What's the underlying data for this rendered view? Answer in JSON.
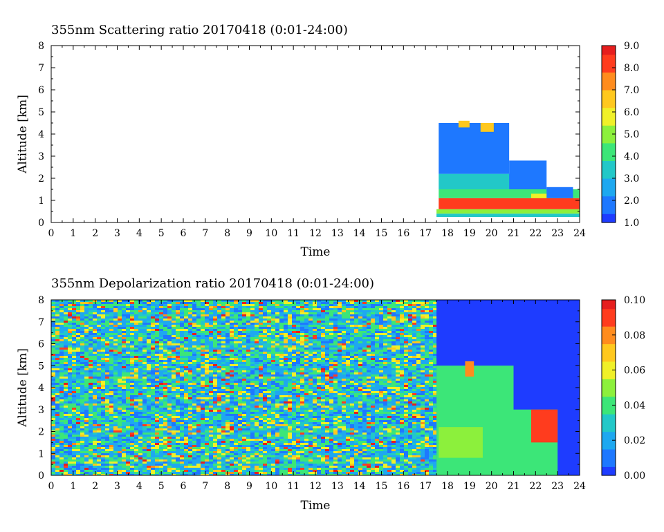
{
  "colors": {
    "colormap": [
      "#1e3cff",
      "#1e78ff",
      "#1ea8f0",
      "#22c8c8",
      "#3ce678",
      "#8cf03c",
      "#f0f028",
      "#ffc81e",
      "#ff8c1e",
      "#ff3c1e",
      "#e61e1e"
    ],
    "frame": "#000000",
    "background": "#ffffff"
  },
  "chart_data": [
    {
      "type": "heatmap",
      "title": "355nm Scattering ratio  20170418 (0:01-24:00)",
      "xlabel": "Time",
      "ylabel": "Altitude [km]",
      "xlim": [
        0,
        24
      ],
      "ylim": [
        0,
        8
      ],
      "x_ticks": [
        "0",
        "1",
        "2",
        "3",
        "4",
        "5",
        "6",
        "7",
        "8",
        "9",
        "10",
        "11",
        "12",
        "13",
        "14",
        "15",
        "16",
        "17",
        "18",
        "19",
        "20",
        "21",
        "22",
        "23",
        "24"
      ],
      "y_ticks": [
        "0",
        "1",
        "2",
        "3",
        "4",
        "5",
        "6",
        "7",
        "8"
      ],
      "colorbar": {
        "min": 1.0,
        "max": 9.0,
        "ticks": [
          "1.0",
          "2.0",
          "3.0",
          "4.0",
          "5.0",
          "6.0",
          "7.0",
          "8.0",
          "9.0"
        ]
      },
      "data_start_time": 17.5,
      "regions": [
        {
          "x": [
            17.5,
            24
          ],
          "y": [
            0.25,
            0.4
          ],
          "value": 3.5
        },
        {
          "x": [
            17.5,
            24
          ],
          "y": [
            0.4,
            0.6
          ],
          "value": 5.0
        },
        {
          "x": [
            17.6,
            24
          ],
          "y": [
            0.6,
            1.1
          ],
          "value": 7.8
        },
        {
          "x": [
            17.6,
            24
          ],
          "y": [
            1.1,
            1.5
          ],
          "value": 4.5
        },
        {
          "x": [
            17.6,
            21.0
          ],
          "y": [
            1.5,
            2.2
          ],
          "value": 3.5
        },
        {
          "x": [
            17.6,
            20.8
          ],
          "y": [
            2.2,
            4.5
          ],
          "value": 1.8
        },
        {
          "x": [
            18.5,
            19.0
          ],
          "y": [
            4.3,
            4.6
          ],
          "value": 6.5
        },
        {
          "x": [
            19.5,
            20.1
          ],
          "y": [
            4.1,
            4.5
          ],
          "value": 6.5
        },
        {
          "x": [
            20.8,
            22.5
          ],
          "y": [
            1.5,
            2.8
          ],
          "value": 1.8
        },
        {
          "x": [
            21.8,
            22.8
          ],
          "y": [
            1.1,
            1.3
          ],
          "value": 6.0
        },
        {
          "x": [
            22.5,
            23.7
          ],
          "y": [
            1.1,
            1.6
          ],
          "value": 1.8
        }
      ]
    },
    {
      "type": "heatmap",
      "title": "355nm Depolarization ratio  20170418 (0:01-24:00)",
      "xlabel": "Time",
      "ylabel": "Altitude [km]",
      "xlim": [
        0,
        24
      ],
      "ylim": [
        0,
        8
      ],
      "x_ticks": [
        "0",
        "1",
        "2",
        "3",
        "4",
        "5",
        "6",
        "7",
        "8",
        "9",
        "10",
        "11",
        "12",
        "13",
        "14",
        "15",
        "16",
        "17",
        "18",
        "19",
        "20",
        "21",
        "22",
        "23",
        "24"
      ],
      "y_ticks": [
        "0",
        "1",
        "2",
        "3",
        "4",
        "5",
        "6",
        "7",
        "8"
      ],
      "colorbar": {
        "min": 0.0,
        "max": 0.1,
        "ticks": [
          "0.00",
          "0.02",
          "0.04",
          "0.06",
          "0.08",
          "0.10"
        ]
      },
      "noise_region": {
        "x": [
          0,
          17.5
        ],
        "y": [
          0,
          8
        ],
        "value_range": [
          0.0,
          0.1
        ]
      },
      "regions": [
        {
          "x": [
            17.5,
            24
          ],
          "y": [
            0,
            8
          ],
          "value": 0.005
        },
        {
          "x": [
            17.5,
            21.0
          ],
          "y": [
            0,
            5.0
          ],
          "value": 0.035
        },
        {
          "x": [
            21.0,
            23.0
          ],
          "y": [
            0,
            3.0
          ],
          "value": 0.035
        },
        {
          "x": [
            17.6,
            19.6
          ],
          "y": [
            0.8,
            2.2
          ],
          "value": 0.055
        },
        {
          "x": [
            21.8,
            23.0
          ],
          "y": [
            1.5,
            3.0
          ],
          "value": 0.09
        },
        {
          "x": [
            18.8,
            19.2
          ],
          "y": [
            4.5,
            5.2
          ],
          "value": 0.08
        }
      ]
    }
  ]
}
